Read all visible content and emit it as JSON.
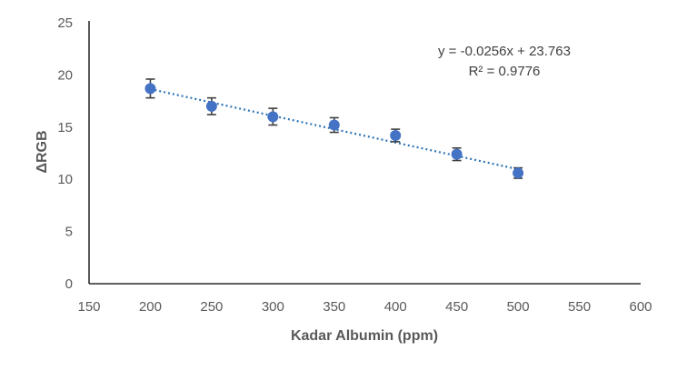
{
  "chart_data": {
    "type": "scatter",
    "title": "",
    "xlabel": "Kadar Albumin (ppm)",
    "ylabel": "ΔRGB",
    "xlim": [
      150,
      600
    ],
    "ylim": [
      0,
      25
    ],
    "x_ticks": [
      "150",
      "200",
      "250",
      "300",
      "350",
      "400",
      "450",
      "500",
      "550",
      "600"
    ],
    "y_ticks": [
      "0",
      "5",
      "10",
      "15",
      "20",
      "25"
    ],
    "grid": false,
    "legend": "none",
    "marker_color": "#4472C4",
    "errorbar_color": "#404040",
    "trendline_color": "#2E75B6",
    "series": [
      {
        "x": [
          200,
          250,
          300,
          350,
          400,
          450,
          500
        ],
        "y": [
          18.7,
          17.0,
          16.0,
          15.2,
          14.2,
          12.4,
          10.6
        ],
        "error": [
          0.9,
          0.8,
          0.8,
          0.7,
          0.6,
          0.6,
          0.5
        ]
      }
    ],
    "trendline": {
      "type": "linear",
      "slope": -0.0256,
      "intercept": 23.763,
      "x_range": [
        200,
        500
      ],
      "equation": "y = -0.0256x + 23.763",
      "r_squared": "R² = 0.9776"
    }
  }
}
